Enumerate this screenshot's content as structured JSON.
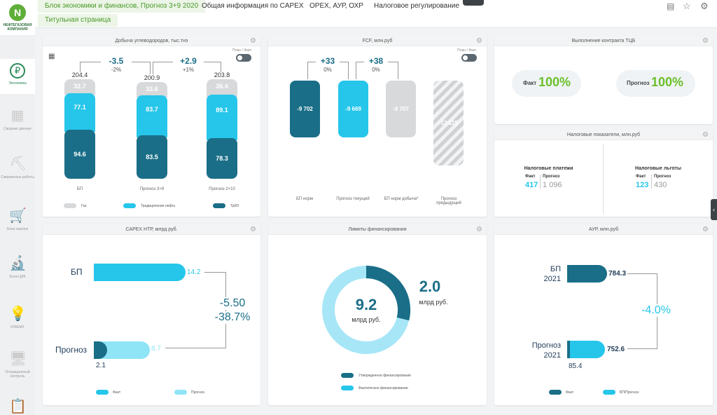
{
  "header": {
    "tabs": [
      {
        "label": "Блок экономики и финансов, Прогноз 3+9 2020"
      },
      {
        "label": "Общая информация по CAPEX"
      },
      {
        "label": "OPEX, АУР, ОХР"
      },
      {
        "label": "Налоговое регулирование"
      }
    ],
    "subtab": "Титульная страница"
  },
  "logo": {
    "text": "НЕФТЕГАЗОВАЯ КОМПАНИЯ"
  },
  "sidebar": {
    "items": [
      {
        "label": "Экономика",
        "icon": "piggy-bank-icon"
      },
      {
        "label": "Сводные данные",
        "icon": "table-icon"
      },
      {
        "label": "Скважинные работы",
        "icon": "oil-rig-icon"
      },
      {
        "label": "Блок закупок",
        "icon": "cart-icon"
      },
      {
        "label": "Блок ЦИК",
        "icon": "microscope-icon"
      },
      {
        "label": "ИЭКИАТ",
        "icon": "lamp-icon"
      },
      {
        "label": "Операционный контроль",
        "icon": "monitor-icon"
      },
      {
        "label": "",
        "icon": "document-icon"
      }
    ]
  },
  "production": {
    "title": "Добыча углеводородов, тыс.тнэ",
    "toggle_label": "План / Факт",
    "columns": [
      {
        "label": "БП",
        "total": "204.4",
        "gas": "32.7",
        "oil": "77.1",
        "other": "94.6"
      },
      {
        "label": "Прогноз 3+9",
        "total": "200.9",
        "gas": "33.6",
        "oil": "83.7",
        "other": "83.5"
      },
      {
        "label": "Прогноз 2+10",
        "total": "203.8",
        "gas": "36.4",
        "oil": "89.1",
        "other": "78.3"
      }
    ],
    "deltas": [
      {
        "abs": "-3.5",
        "pct": "-2%"
      },
      {
        "abs": "+2.9",
        "pct": "+1%"
      }
    ],
    "legend": [
      "Газ",
      "Традиционная нефть",
      "ТрИЗ"
    ]
  },
  "fcf": {
    "title": "FCF, млн.руб",
    "toggle_label": "План / Факт",
    "bars": [
      {
        "value": "-9 702",
        "label": "БП норм"
      },
      {
        "value": "-9 669",
        "label": "Прогноз текущий"
      },
      {
        "value": "-9 707",
        "label": "БП норм добыча*"
      },
      {
        "value": "-13 125",
        "label": "Прогноз предыдущий"
      }
    ],
    "deltas": [
      {
        "abs": "+33",
        "pct": "0%"
      },
      {
        "abs": "+38",
        "pct": "0%"
      }
    ]
  },
  "contract": {
    "title": "Выполнение контракта ТЦБ",
    "fact_label": "Факт",
    "fact_value": "100%",
    "forecast_label": "Прогноз",
    "forecast_value": "100%"
  },
  "tax": {
    "title": "Налоговые показатели, млн.руб",
    "payments": {
      "title": "Налоговые платежи",
      "fact_label": "Факт",
      "fact_value": "417",
      "forecast_label": "Прогноз",
      "forecast_value": "1 096"
    },
    "benefits": {
      "title": "Налоговые льготы",
      "fact_label": "Факт",
      "fact_value": "123",
      "forecast_label": "Прогноз",
      "forecast_value": "430"
    }
  },
  "capex": {
    "title": "CAPEX НТР, млрд руб.",
    "bp_label": "БП",
    "bp_value": "14.2",
    "forecast_label": "Прогноз",
    "forecast_value": "8.7",
    "forecast_fact_value": "2.1",
    "delta_abs": "-5.50",
    "delta_pct": "-38.7%",
    "legend": [
      "Факт",
      "Прогноз"
    ]
  },
  "limits": {
    "title": "Лимиты финансирования",
    "total_value": "9.2",
    "total_unit": "млрд руб.",
    "fact_value": "2.0",
    "fact_unit": "млрд руб.",
    "legend": [
      "Утвержденное финансирование",
      "Фактическое финансирование"
    ]
  },
  "aur": {
    "title": "АУР, млн.руб",
    "bp_label": "БП",
    "bp_year": "2021",
    "bp_value": "784.3",
    "forecast_label": "Прогноз",
    "forecast_year": "2021",
    "forecast_value": "752.6",
    "forecast_fact_value": "85.4",
    "delta_pct": "-4.0%",
    "legend": [
      "Факт",
      "БП/Прогноз"
    ]
  },
  "colors": {
    "dark_teal": "#1a6e87",
    "cyan": "#26c6ea",
    "light_cyan": "#8fe4f6",
    "gray": "#d7d9db",
    "green": "#6bbf2a"
  }
}
